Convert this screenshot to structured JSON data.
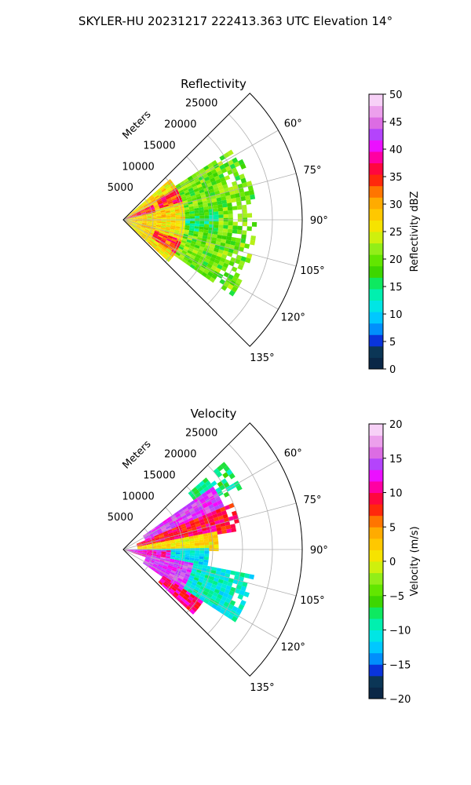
{
  "figure": {
    "title": "SKYLER-HU  20231217  222413.363 UTC Elevation 14°"
  },
  "chart_data": [
    {
      "type": "heatmap",
      "projection": "polar-sector",
      "title": "Reflectivity",
      "radial_label": "Meters",
      "radial_ticks": [
        5000,
        10000,
        15000,
        20000,
        25000
      ],
      "radial_tick_labels": [
        "5000",
        "10000",
        "15000",
        "20000",
        "25000"
      ],
      "rmax": 30000,
      "angle_ticks": [
        60,
        75,
        90,
        105,
        120,
        135
      ],
      "angle_tick_labels": [
        "60°",
        "75°",
        "90°",
        "105°",
        "120°",
        "135°"
      ],
      "theta_range": [
        45,
        135
      ],
      "grid": true,
      "colorbar": {
        "label": "Reflectivity dBZ",
        "min": 0,
        "max": 50,
        "ticks": [
          0,
          5,
          10,
          15,
          20,
          25,
          30,
          35,
          40,
          45,
          50
        ],
        "tick_labels": [
          "0",
          "5",
          "10",
          "15",
          "20",
          "25",
          "30",
          "35",
          "40",
          "45",
          "50"
        ],
        "colormap": "pyart_HomeyerRainbow-like",
        "stops": [
          {
            "value": 0,
            "color": "#0a1a5c"
          },
          {
            "value": 2.5,
            "color": "#0b3a2a"
          },
          {
            "value": 5,
            "color": "#0a2bd8"
          },
          {
            "value": 7.5,
            "color": "#0098ff"
          },
          {
            "value": 10,
            "color": "#00d8ff"
          },
          {
            "value": 12.5,
            "color": "#00f0d0"
          },
          {
            "value": 15,
            "color": "#00f080"
          },
          {
            "value": 17.5,
            "color": "#39d400"
          },
          {
            "value": 20,
            "color": "#66e800"
          },
          {
            "value": 22.5,
            "color": "#a0f020"
          },
          {
            "value": 25,
            "color": "#f0f000"
          },
          {
            "value": 27.5,
            "color": "#ffd000"
          },
          {
            "value": 30,
            "color": "#ffb000"
          },
          {
            "value": 32.5,
            "color": "#ff7000"
          },
          {
            "value": 35,
            "color": "#ff1010"
          },
          {
            "value": 37.5,
            "color": "#ff0060"
          },
          {
            "value": 40,
            "color": "#ff00ff"
          },
          {
            "value": 42.5,
            "color": "#b040ff"
          },
          {
            "value": 45,
            "color": "#e070e0"
          },
          {
            "value": 47.5,
            "color": "#f0b0f0"
          },
          {
            "value": 50,
            "color": "#fce8fc"
          }
        ]
      },
      "field_summary": [
        {
          "theta_range": [
            48,
            132
          ],
          "r_range": [
            0,
            10000
          ],
          "value": 27
        },
        {
          "theta_range": [
            58,
            72
          ],
          "r_range": [
            6000,
            11000
          ],
          "value": 35
        },
        {
          "theta_range": [
            108,
            122
          ],
          "r_range": [
            5000,
            11000
          ],
          "value": 34
        },
        {
          "theta_range": [
            62,
            76
          ],
          "r_range": [
            0,
            5000
          ],
          "value": 36
        },
        {
          "theta_range": [
            56,
            124
          ],
          "r_range": [
            10000,
            22000
          ],
          "value": 20
        },
        {
          "theta_range": [
            82,
            98
          ],
          "r_range": [
            10000,
            16000
          ],
          "value": 16
        }
      ]
    },
    {
      "type": "heatmap",
      "projection": "polar-sector",
      "title": "Velocity",
      "radial_label": "Meters",
      "radial_ticks": [
        5000,
        10000,
        15000,
        20000,
        25000
      ],
      "radial_tick_labels": [
        "5000",
        "10000",
        "15000",
        "20000",
        "25000"
      ],
      "rmax": 30000,
      "angle_ticks": [
        60,
        75,
        90,
        105,
        120,
        135
      ],
      "angle_tick_labels": [
        "60°",
        "75°",
        "90°",
        "105°",
        "120°",
        "135°"
      ],
      "theta_range": [
        45,
        135
      ],
      "grid": true,
      "colorbar": {
        "label": "Velocity (m/s)",
        "min": -20,
        "max": 20,
        "ticks": [
          -20,
          -15,
          -10,
          -5,
          0,
          5,
          10,
          15,
          20
        ],
        "tick_labels": [
          "−20",
          "−15",
          "−10",
          "−5",
          "0",
          "5",
          "10",
          "15",
          "20"
        ],
        "colormap": "pyart_BuDRd-like",
        "stops": [
          {
            "value": -20,
            "color": "#0a1a5c"
          },
          {
            "value": -18,
            "color": "#0b3a2a"
          },
          {
            "value": -16,
            "color": "#0a2bd8"
          },
          {
            "value": -14,
            "color": "#0098ff"
          },
          {
            "value": -12,
            "color": "#00d8ff"
          },
          {
            "value": -10,
            "color": "#00f0d0"
          },
          {
            "value": -8,
            "color": "#00f080"
          },
          {
            "value": -6,
            "color": "#39d400"
          },
          {
            "value": -4,
            "color": "#66e800"
          },
          {
            "value": -2,
            "color": "#a0f020"
          },
          {
            "value": 0,
            "color": "#f0f000"
          },
          {
            "value": 2,
            "color": "#ffd000"
          },
          {
            "value": 4,
            "color": "#ffb000"
          },
          {
            "value": 6,
            "color": "#ff7000"
          },
          {
            "value": 8,
            "color": "#ff1010"
          },
          {
            "value": 10,
            "color": "#ff0060"
          },
          {
            "value": 12,
            "color": "#ff00ff"
          },
          {
            "value": 14,
            "color": "#b040ff"
          },
          {
            "value": 16,
            "color": "#e070e0"
          },
          {
            "value": 18,
            "color": "#f0b0f0"
          },
          {
            "value": 20,
            "color": "#fce8fc"
          }
        ]
      },
      "field_summary": [
        {
          "theta_range": [
            48,
            62
          ],
          "r_range": [
            14000,
            22000
          ],
          "value": -8
        },
        {
          "theta_range": [
            55,
            68
          ],
          "r_range": [
            4000,
            18000
          ],
          "value": 14
        },
        {
          "theta_range": [
            66,
            80
          ],
          "r_range": [
            2000,
            20000
          ],
          "value": 9
        },
        {
          "theta_range": [
            78,
            90
          ],
          "r_range": [
            2000,
            16000
          ],
          "value": 1
        },
        {
          "theta_range": [
            88,
            100
          ],
          "r_range": [
            0,
            14000
          ],
          "value": -11
        },
        {
          "theta_range": [
            90,
            108
          ],
          "r_range": [
            0,
            8000
          ],
          "value": 12
        },
        {
          "theta_range": [
            100,
            125
          ],
          "r_range": [
            4000,
            14000
          ],
          "value": 14
        },
        {
          "theta_range": [
            100,
            122
          ],
          "r_range": [
            12000,
            22000
          ],
          "value": -10
        },
        {
          "theta_range": [
            122,
            134
          ],
          "r_range": [
            8000,
            16000
          ],
          "value": 10
        }
      ]
    }
  ]
}
